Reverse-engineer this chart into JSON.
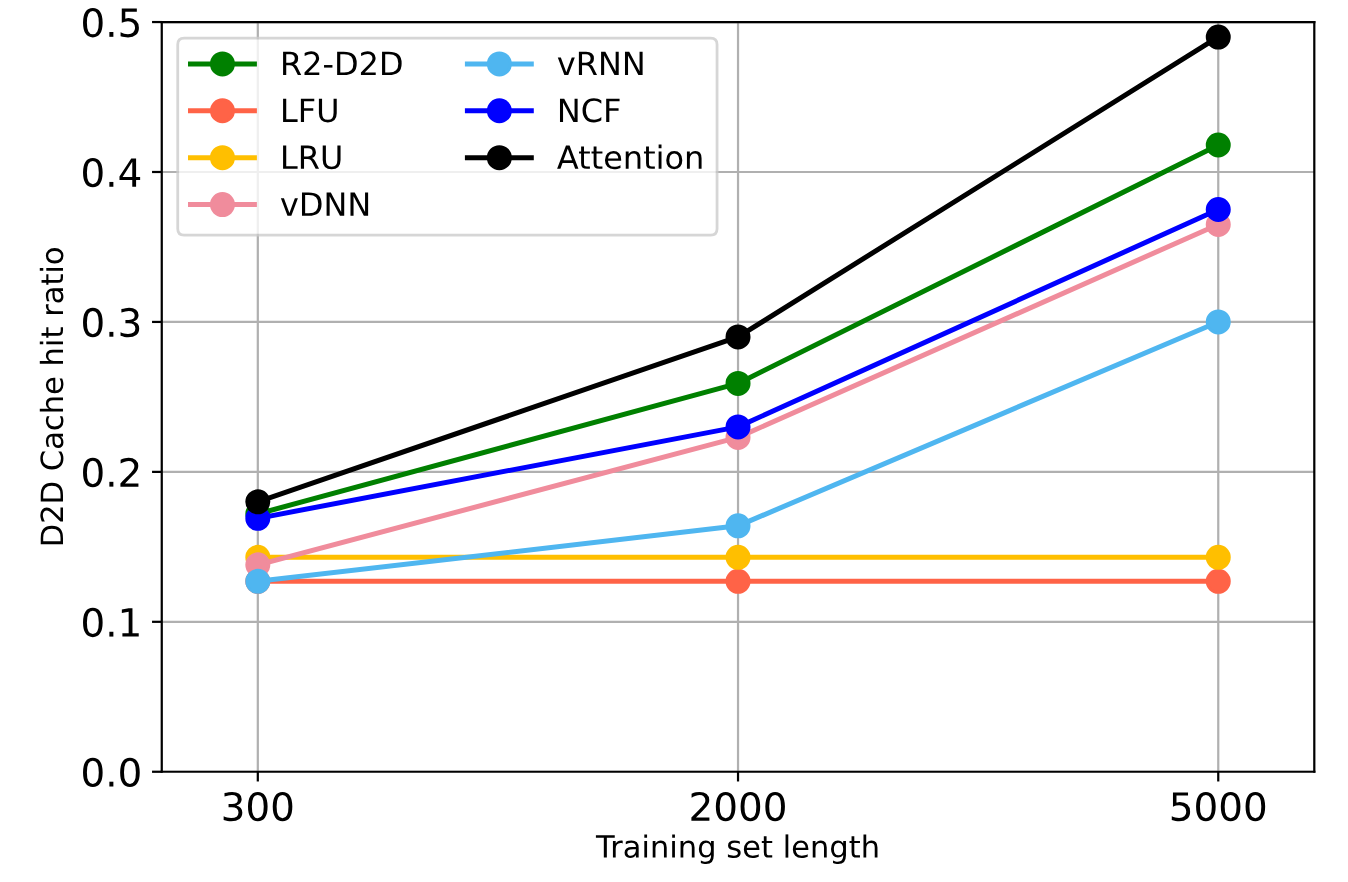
{
  "chart_data": {
    "type": "line",
    "xlabel": "Training set length",
    "ylabel": "D2D Cache hit ratio",
    "categories": [
      "300",
      "2000",
      "5000"
    ],
    "series": [
      {
        "name": "R2-D2D",
        "color": "#008000",
        "values": [
          0.172,
          0.259,
          0.418
        ]
      },
      {
        "name": "LFU",
        "color": "#ff6347",
        "values": [
          0.127,
          0.127,
          0.127
        ]
      },
      {
        "name": "LRU",
        "color": "#ffbf00",
        "values": [
          0.143,
          0.143,
          0.143
        ]
      },
      {
        "name": "vDNN",
        "color": "#f08c9c",
        "values": [
          0.138,
          0.223,
          0.365
        ]
      },
      {
        "name": "vRNN",
        "color": "#4fb6f0",
        "values": [
          0.127,
          0.164,
          0.3
        ]
      },
      {
        "name": "NCF",
        "color": "#0000ff",
        "values": [
          0.169,
          0.23,
          0.375
        ]
      },
      {
        "name": "Attention",
        "color": "#000000",
        "values": [
          0.18,
          0.29,
          0.49
        ]
      }
    ],
    "ylim": [
      0,
      0.5
    ],
    "yticks": [
      {
        "value": 0,
        "label": "0.0"
      },
      {
        "value": 0.1,
        "label": "0.1"
      },
      {
        "value": 0.2,
        "label": "0.2"
      },
      {
        "value": 0.3,
        "label": "0.3"
      },
      {
        "value": 0.4,
        "label": "0.4"
      },
      {
        "value": 0.5,
        "label": "0.5"
      }
    ],
    "grid": true,
    "legend": "top left",
    "marker": "circle",
    "line_style": "solid"
  }
}
